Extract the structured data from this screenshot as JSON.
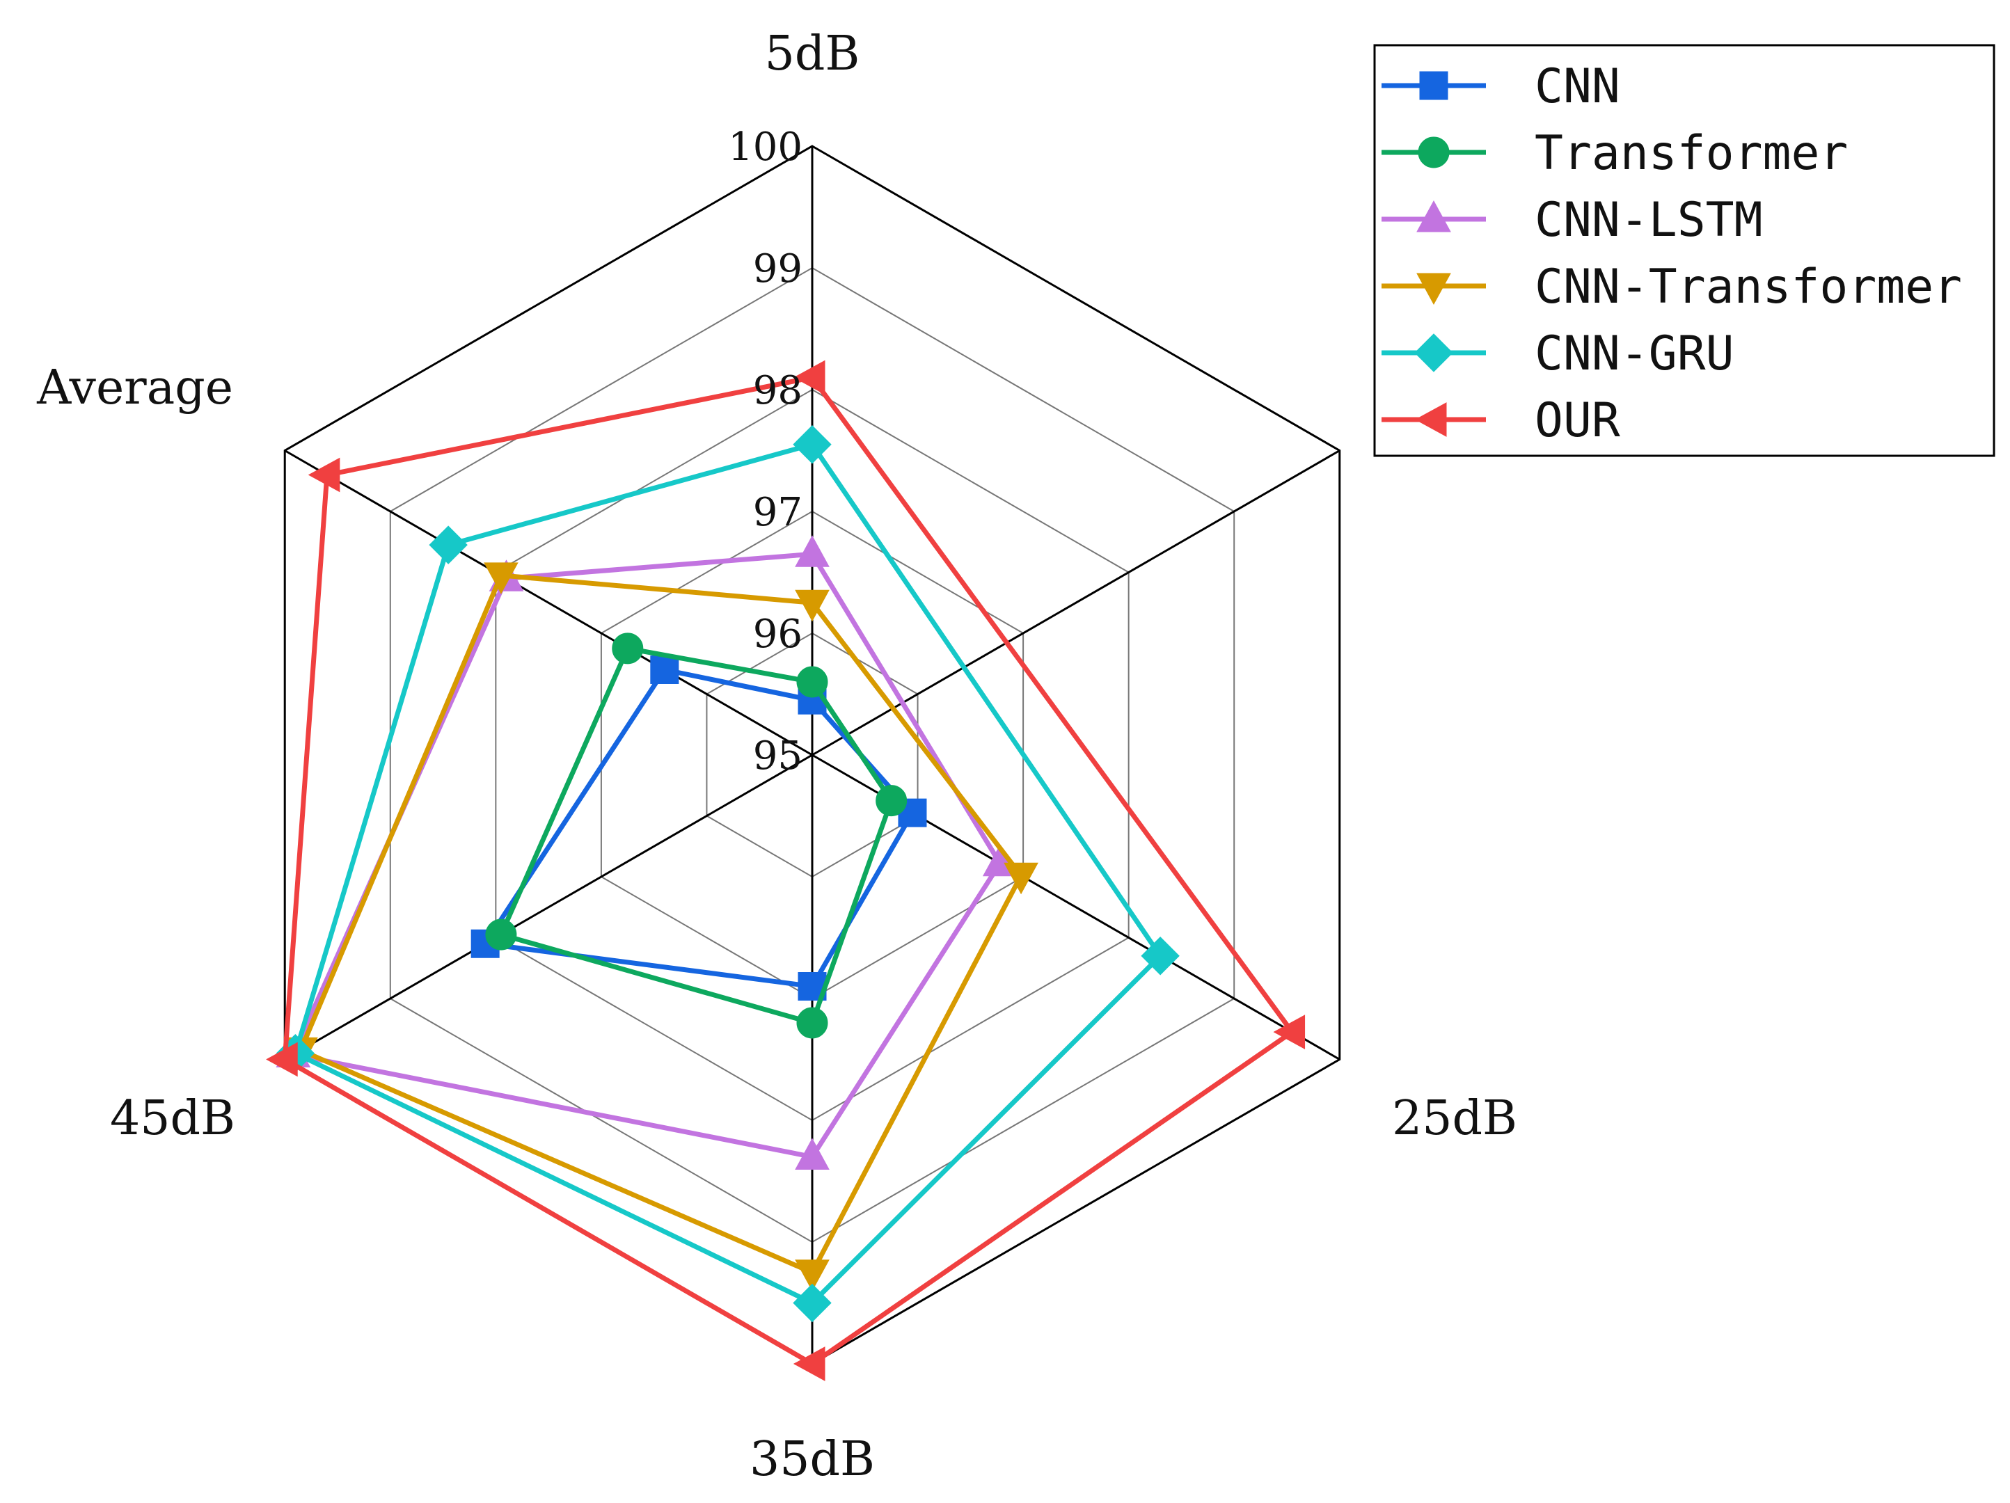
{
  "chart_data": {
    "type": "radar",
    "title": "",
    "axes": [
      "5dB",
      "25dB",
      "35dB",
      "45dB",
      "Average"
    ],
    "range": [
      95,
      100
    ],
    "ticks": [
      95,
      96,
      97,
      98,
      99,
      100
    ],
    "grid": true,
    "legend_position": "top-right",
    "series": [
      {
        "name": "CNN",
        "color": "#1565E0",
        "marker": "square",
        "values": [
          95.45,
          95.95,
          96.9,
          98.1,
          96.4
        ]
      },
      {
        "name": "Transformer",
        "color": "#0DA85E",
        "marker": "circle",
        "values": [
          95.6,
          95.75,
          97.2,
          97.95,
          96.75
        ]
      },
      {
        "name": "CNN-LSTM",
        "color": "#C274E0",
        "marker": "triangle-up",
        "values": [
          96.65,
          96.78,
          98.3,
          99.92,
          97.9
        ]
      },
      {
        "name": "CNN-Transformer",
        "color": "#D79A00",
        "marker": "triangle-down",
        "values": [
          96.25,
          96.98,
          99.25,
          99.85,
          97.95
        ]
      },
      {
        "name": "CNN-GRU",
        "color": "#16C8C8",
        "marker": "diamond",
        "values": [
          97.55,
          98.3,
          99.5,
          99.9,
          98.45
        ]
      },
      {
        "name": "OUR",
        "color": "#F04040",
        "marker": "triangle-left",
        "values": [
          98.1,
          99.55,
          100.0,
          100.0,
          99.6
        ]
      }
    ]
  }
}
